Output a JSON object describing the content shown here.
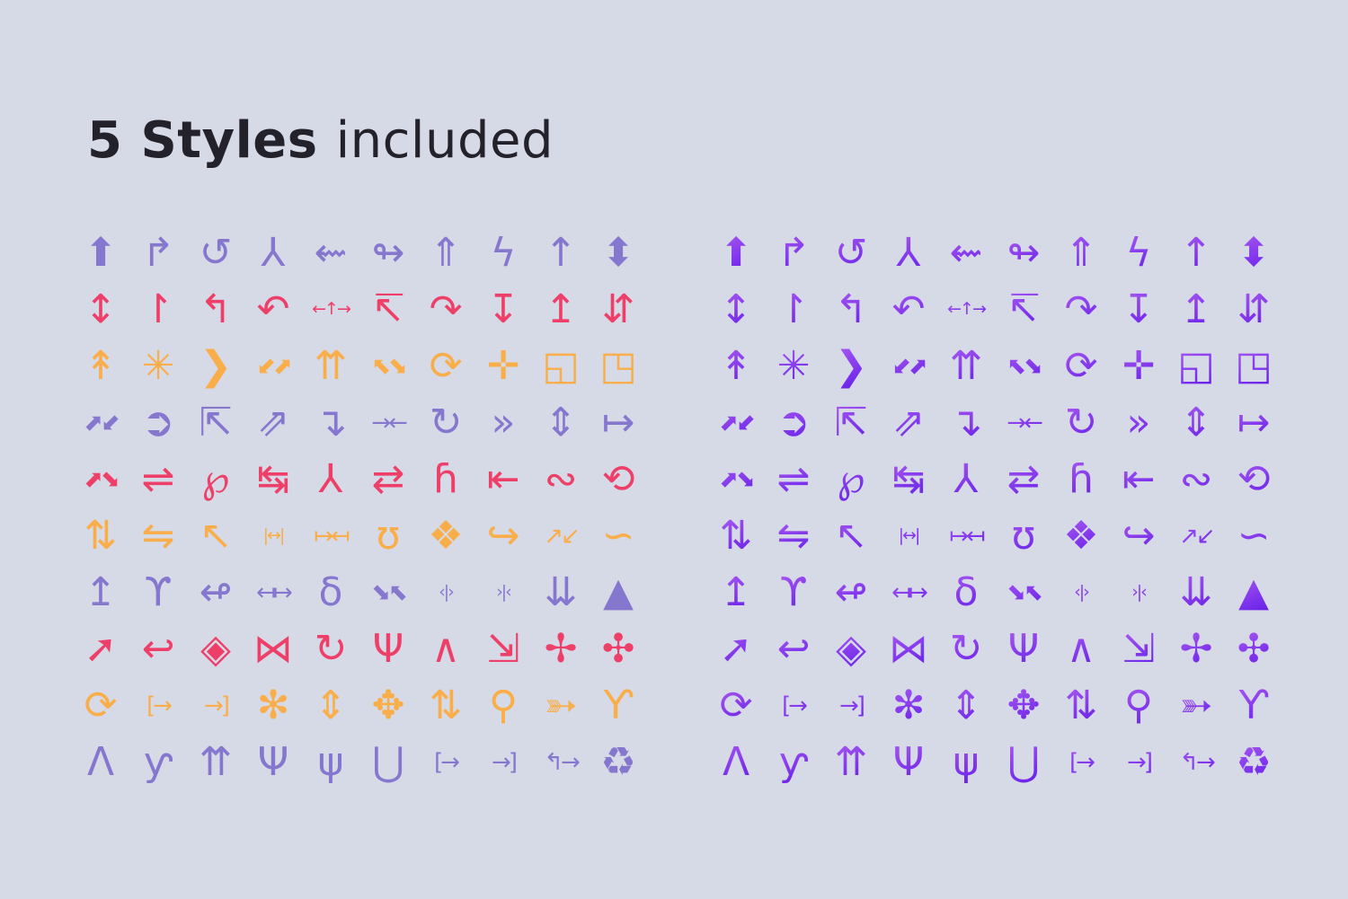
{
  "title": {
    "bold": "5 Styles",
    "regular": "included"
  },
  "colors": {
    "background": "#d6d9e6",
    "title": "#232129",
    "purple": "#8677ce",
    "pink": "#ee3f68",
    "orange": "#f9ae49",
    "gradient_start": "#b765f2",
    "gradient_end": "#5d17e8"
  },
  "grids": [
    {
      "id": "grid-left",
      "style": "flat"
    },
    {
      "id": "grid-right",
      "style": "gradient"
    }
  ],
  "icons": [
    {
      "style": "purple",
      "cells": [
        {
          "name": "arrow-up",
          "glyph": "⬆"
        },
        {
          "name": "corner-up-right",
          "glyph": "↱"
        },
        {
          "name": "u-turn-up",
          "glyph": "↺"
        },
        {
          "name": "fork-arrows-up",
          "glyph": "⅄"
        },
        {
          "name": "s-curve-arrow-left",
          "glyph": "⇜"
        },
        {
          "name": "loop-arrow-up",
          "glyph": "↬"
        },
        {
          "name": "merge-arrow-up",
          "glyph": "⇑"
        },
        {
          "name": "zigzag-arrow-up",
          "glyph": "ϟ"
        },
        {
          "name": "arrow-up-thin",
          "glyph": "↑"
        },
        {
          "name": "chevrons-up-down",
          "glyph": "⬍"
        }
      ]
    },
    {
      "style": "pink",
      "cells": [
        {
          "name": "arrow-up-down",
          "glyph": "↕"
        },
        {
          "name": "merge-lane-up",
          "glyph": "↾"
        },
        {
          "name": "stair-arrow-up-left",
          "glyph": "↰"
        },
        {
          "name": "curve-arrow-up",
          "glyph": "↶"
        },
        {
          "name": "three-way-arrows",
          "glyph": "←↑→"
        },
        {
          "name": "branch-arrow-up-left",
          "glyph": "↸"
        },
        {
          "name": "curve-arrow-up-right",
          "glyph": "↷"
        },
        {
          "name": "download-to-tray",
          "glyph": "↧"
        },
        {
          "name": "upload-from-tray",
          "glyph": "↥"
        },
        {
          "name": "arrows-down-up",
          "glyph": "⇵"
        }
      ]
    },
    {
      "style": "orange",
      "cells": [
        {
          "name": "double-chevron-up",
          "glyph": "↟"
        },
        {
          "name": "collapse-to-center",
          "glyph": "✳"
        },
        {
          "name": "chevron-right-bold",
          "glyph": "❯"
        },
        {
          "name": "collapse-diagonal",
          "glyph": "⬋⬈"
        },
        {
          "name": "double-arrow-up",
          "glyph": "⇈"
        },
        {
          "name": "expand-corners",
          "glyph": "⬉⬊"
        },
        {
          "name": "rotate-arrow-into-circle",
          "glyph": "⟳"
        },
        {
          "name": "move-four-way",
          "glyph": "✛"
        },
        {
          "name": "resize-square-inward",
          "glyph": "◱"
        },
        {
          "name": "resize-square-outward",
          "glyph": "◳"
        }
      ]
    },
    {
      "style": "purple",
      "cells": [
        {
          "name": "expand-diagonal",
          "glyph": "⬈⬋"
        },
        {
          "name": "circle-arrow-right",
          "glyph": "➲"
        },
        {
          "name": "arrow-into-box",
          "glyph": "⇱"
        },
        {
          "name": "arrow-out-of-box",
          "glyph": "⇗"
        },
        {
          "name": "turn-down-right",
          "glyph": "↴"
        },
        {
          "name": "arrows-converge-horizontal",
          "glyph": "→←"
        },
        {
          "name": "rotate-clockwise",
          "glyph": "↻"
        },
        {
          "name": "circle-chevrons-right",
          "glyph": "»"
        },
        {
          "name": "circle-arrow-up-down",
          "glyph": "⇕"
        },
        {
          "name": "arrow-from-bar-right",
          "glyph": "↦"
        }
      ]
    },
    {
      "style": "pink",
      "cells": [
        {
          "name": "crossing-arrows",
          "glyph": "⬈⬊"
        },
        {
          "name": "shuffle-arrows",
          "glyph": "⇌"
        },
        {
          "name": "arrow-up-loop",
          "glyph": "℘"
        },
        {
          "name": "t-arrows-left-right",
          "glyph": "↹"
        },
        {
          "name": "y-split-arrows-up",
          "glyph": "⅄"
        },
        {
          "name": "repeat-arrows",
          "glyph": "⇄"
        },
        {
          "name": "arrow-up-hook-right",
          "glyph": "ɦ"
        },
        {
          "name": "arrow-to-bar-left",
          "glyph": "⇤"
        },
        {
          "name": "linked-arrows",
          "glyph": "∾"
        },
        {
          "name": "circular-arrows",
          "glyph": "⟲"
        }
      ]
    },
    {
      "style": "orange",
      "cells": [
        {
          "name": "rotate-vertical-arrows",
          "glyph": "⇅"
        },
        {
          "name": "shuffle-crossing-arrows",
          "glyph": "⇋"
        },
        {
          "name": "zigzag-arrow-up-left",
          "glyph": "↖"
        },
        {
          "name": "arrows-between-bars",
          "glyph": "|↔|"
        },
        {
          "name": "arrows-from-bars",
          "glyph": "↦↤"
        },
        {
          "name": "u-turn-loop-up",
          "glyph": "ʊ"
        },
        {
          "name": "expand-from-center",
          "glyph": "❖"
        },
        {
          "name": "curve-arrow-right",
          "glyph": "↪"
        },
        {
          "name": "diagonal-arrows-out",
          "glyph": "↗↙"
        },
        {
          "name": "s-shaped-arrow",
          "glyph": "∽"
        }
      ]
    },
    {
      "style": "purple",
      "cells": [
        {
          "name": "merge-junction-up",
          "glyph": "↥"
        },
        {
          "name": "split-arrows-up",
          "glyph": "ϒ"
        },
        {
          "name": "loop-arrows-horizontal",
          "glyph": "↫"
        },
        {
          "name": "arrows-out-from-bar",
          "glyph": "↤↦"
        },
        {
          "name": "lasso-arrow-up-right",
          "glyph": "δ"
        },
        {
          "name": "converge-diagonal-arrows",
          "glyph": "⬊⬉"
        },
        {
          "name": "arrows-out-of-bar",
          "glyph": "‹|›"
        },
        {
          "name": "arrows-into-bar",
          "glyph": "›|‹"
        },
        {
          "name": "collapse-down-to-bar",
          "glyph": "⇊"
        },
        {
          "name": "eject-arrow-up",
          "glyph": "▲"
        }
      ]
    },
    {
      "style": "pink",
      "cells": [
        {
          "name": "curved-arrow-up-right",
          "glyph": "➚"
        },
        {
          "name": "hook-arrow-left",
          "glyph": "↩"
        },
        {
          "name": "focus-arrows-vertical",
          "glyph": "◈"
        },
        {
          "name": "cross-arrows-x",
          "glyph": "⋈"
        },
        {
          "name": "loop-arrow-clockwise",
          "glyph": "↻"
        },
        {
          "name": "curved-fork-arrows-up",
          "glyph": "Ψ"
        },
        {
          "name": "merge-arch-up",
          "glyph": "∧"
        },
        {
          "name": "arrow-into-corner-box",
          "glyph": "⇲"
        },
        {
          "name": "move-arrows-center-dot",
          "glyph": "✢"
        },
        {
          "name": "converge-center-dot",
          "glyph": "✣"
        }
      ]
    },
    {
      "style": "orange",
      "cells": [
        {
          "name": "circular-rotate-arrows",
          "glyph": "⟳"
        },
        {
          "name": "exit-box-arrow-right",
          "glyph": "[→"
        },
        {
          "name": "enter-box-arrow-right",
          "glyph": "→]"
        },
        {
          "name": "compress-diagonal-arrows",
          "glyph": "✻"
        },
        {
          "name": "scroll-chevrons-vertical",
          "glyph": "⇕"
        },
        {
          "name": "move-arrows-circle-center",
          "glyph": "✥"
        },
        {
          "name": "vertical-arrows-circle-center",
          "glyph": "⇅"
        },
        {
          "name": "arrow-up-from-circle",
          "glyph": "⚲"
        },
        {
          "name": "circle-arrow-out-up-right",
          "glyph": "➳"
        },
        {
          "name": "curved-y-split",
          "glyph": "Ƴ"
        }
      ]
    },
    {
      "style": "purple",
      "cells": [
        {
          "name": "merge-road-up",
          "glyph": "Ʌ"
        },
        {
          "name": "lane-split-up",
          "glyph": "ƴ"
        },
        {
          "name": "double-slanted-arrows-up",
          "glyph": "⇈"
        },
        {
          "name": "trident-arrows-up",
          "glyph": "Ψ"
        },
        {
          "name": "three-way-split-up",
          "glyph": "ψ"
        },
        {
          "name": "u-split-arrows-up",
          "glyph": "⋃"
        },
        {
          "name": "bracket-arrow-out-right",
          "glyph": "[→"
        },
        {
          "name": "arrow-into-bracket-right",
          "glyph": "→]"
        },
        {
          "name": "turn-arrows-left-right",
          "glyph": "↰→"
        },
        {
          "name": "recycle-arrows",
          "glyph": "♻"
        }
      ]
    }
  ]
}
